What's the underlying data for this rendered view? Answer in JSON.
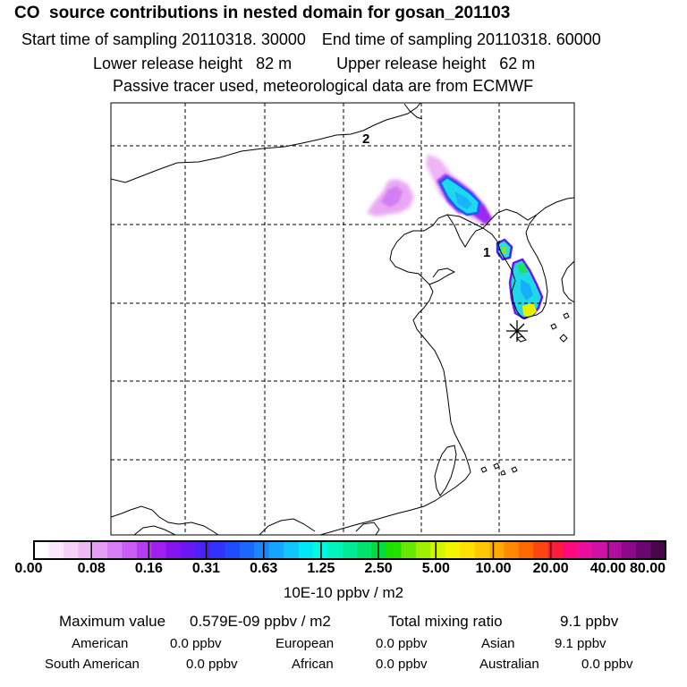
{
  "header": {
    "title": "CO  source contributions in nested domain for gosan_201103",
    "start_label": "Start time of sampling",
    "start_value": "20110318. 30000",
    "end_label": "End time of sampling",
    "end_value": "20110318. 60000",
    "lower_label": "Lower release height",
    "lower_value": "82 m",
    "upper_label": "Upper release height",
    "upper_value": "62 m",
    "note": "Passive tracer used, meteorological data are from ECMWF"
  },
  "chart_data": {
    "type": "heatmap",
    "title": "CO  source contributions in nested domain for gosan_201103",
    "map_labels": [
      "1",
      "2"
    ],
    "colorbar": {
      "tick_labels": [
        "0.00",
        "0.08",
        "0.16",
        "0.31",
        "0.63",
        "1.25",
        "2.50",
        "5.00",
        "10.00",
        "20.00",
        "40.00",
        "80.00"
      ],
      "ticks": [
        0,
        0.08,
        0.16,
        0.31,
        0.63,
        1.25,
        2.5,
        5,
        10,
        20,
        40,
        80
      ],
      "unit": "10E-10 ppbv / m2",
      "colors": [
        "#ffffff",
        "#fbe8fc",
        "#f6d2f9",
        "#efb9f6",
        "#e59df5",
        "#d77ef6",
        "#c95ef6",
        "#b63cf2",
        "#9e1ff0",
        "#8413ef",
        "#6a17f3",
        "#4b21f7",
        "#2f33fb",
        "#1f4bff",
        "#1b68ff",
        "#1988ff",
        "#16a6ff",
        "#10c6fb",
        "#00e8f6",
        "#00fae1",
        "#00f5bd",
        "#00ec96",
        "#00e36d",
        "#00dd3c",
        "#20e000",
        "#66e800",
        "#9ef000",
        "#d2f600",
        "#f5f400",
        "#ffe000",
        "#ffc800",
        "#ffaa00",
        "#ff8a00",
        "#ff6800",
        "#ff4610",
        "#ff1c3c",
        "#ff0a7a",
        "#ec0e9c",
        "#d110a8",
        "#b00e9e",
        "#8c0a8a",
        "#6a0670",
        "#48054c"
      ]
    },
    "receptor": "Gosan"
  },
  "summary": {
    "max_label": "Maximum value",
    "max_value": "0.579E-09 ppbv / m2",
    "total_label": "Total mixing ratio",
    "total_value": "9.1 ppbv",
    "regions": [
      {
        "name": "American",
        "value": "0.0 ppbv"
      },
      {
        "name": "European",
        "value": "0.0 ppbv"
      },
      {
        "name": "Asian",
        "value": "9.1 ppbv"
      },
      {
        "name": "South American",
        "value": "0.0 ppbv"
      },
      {
        "name": "African",
        "value": "0.0 ppbv"
      },
      {
        "name": "Australian",
        "value": "0.0 ppbv"
      }
    ]
  }
}
